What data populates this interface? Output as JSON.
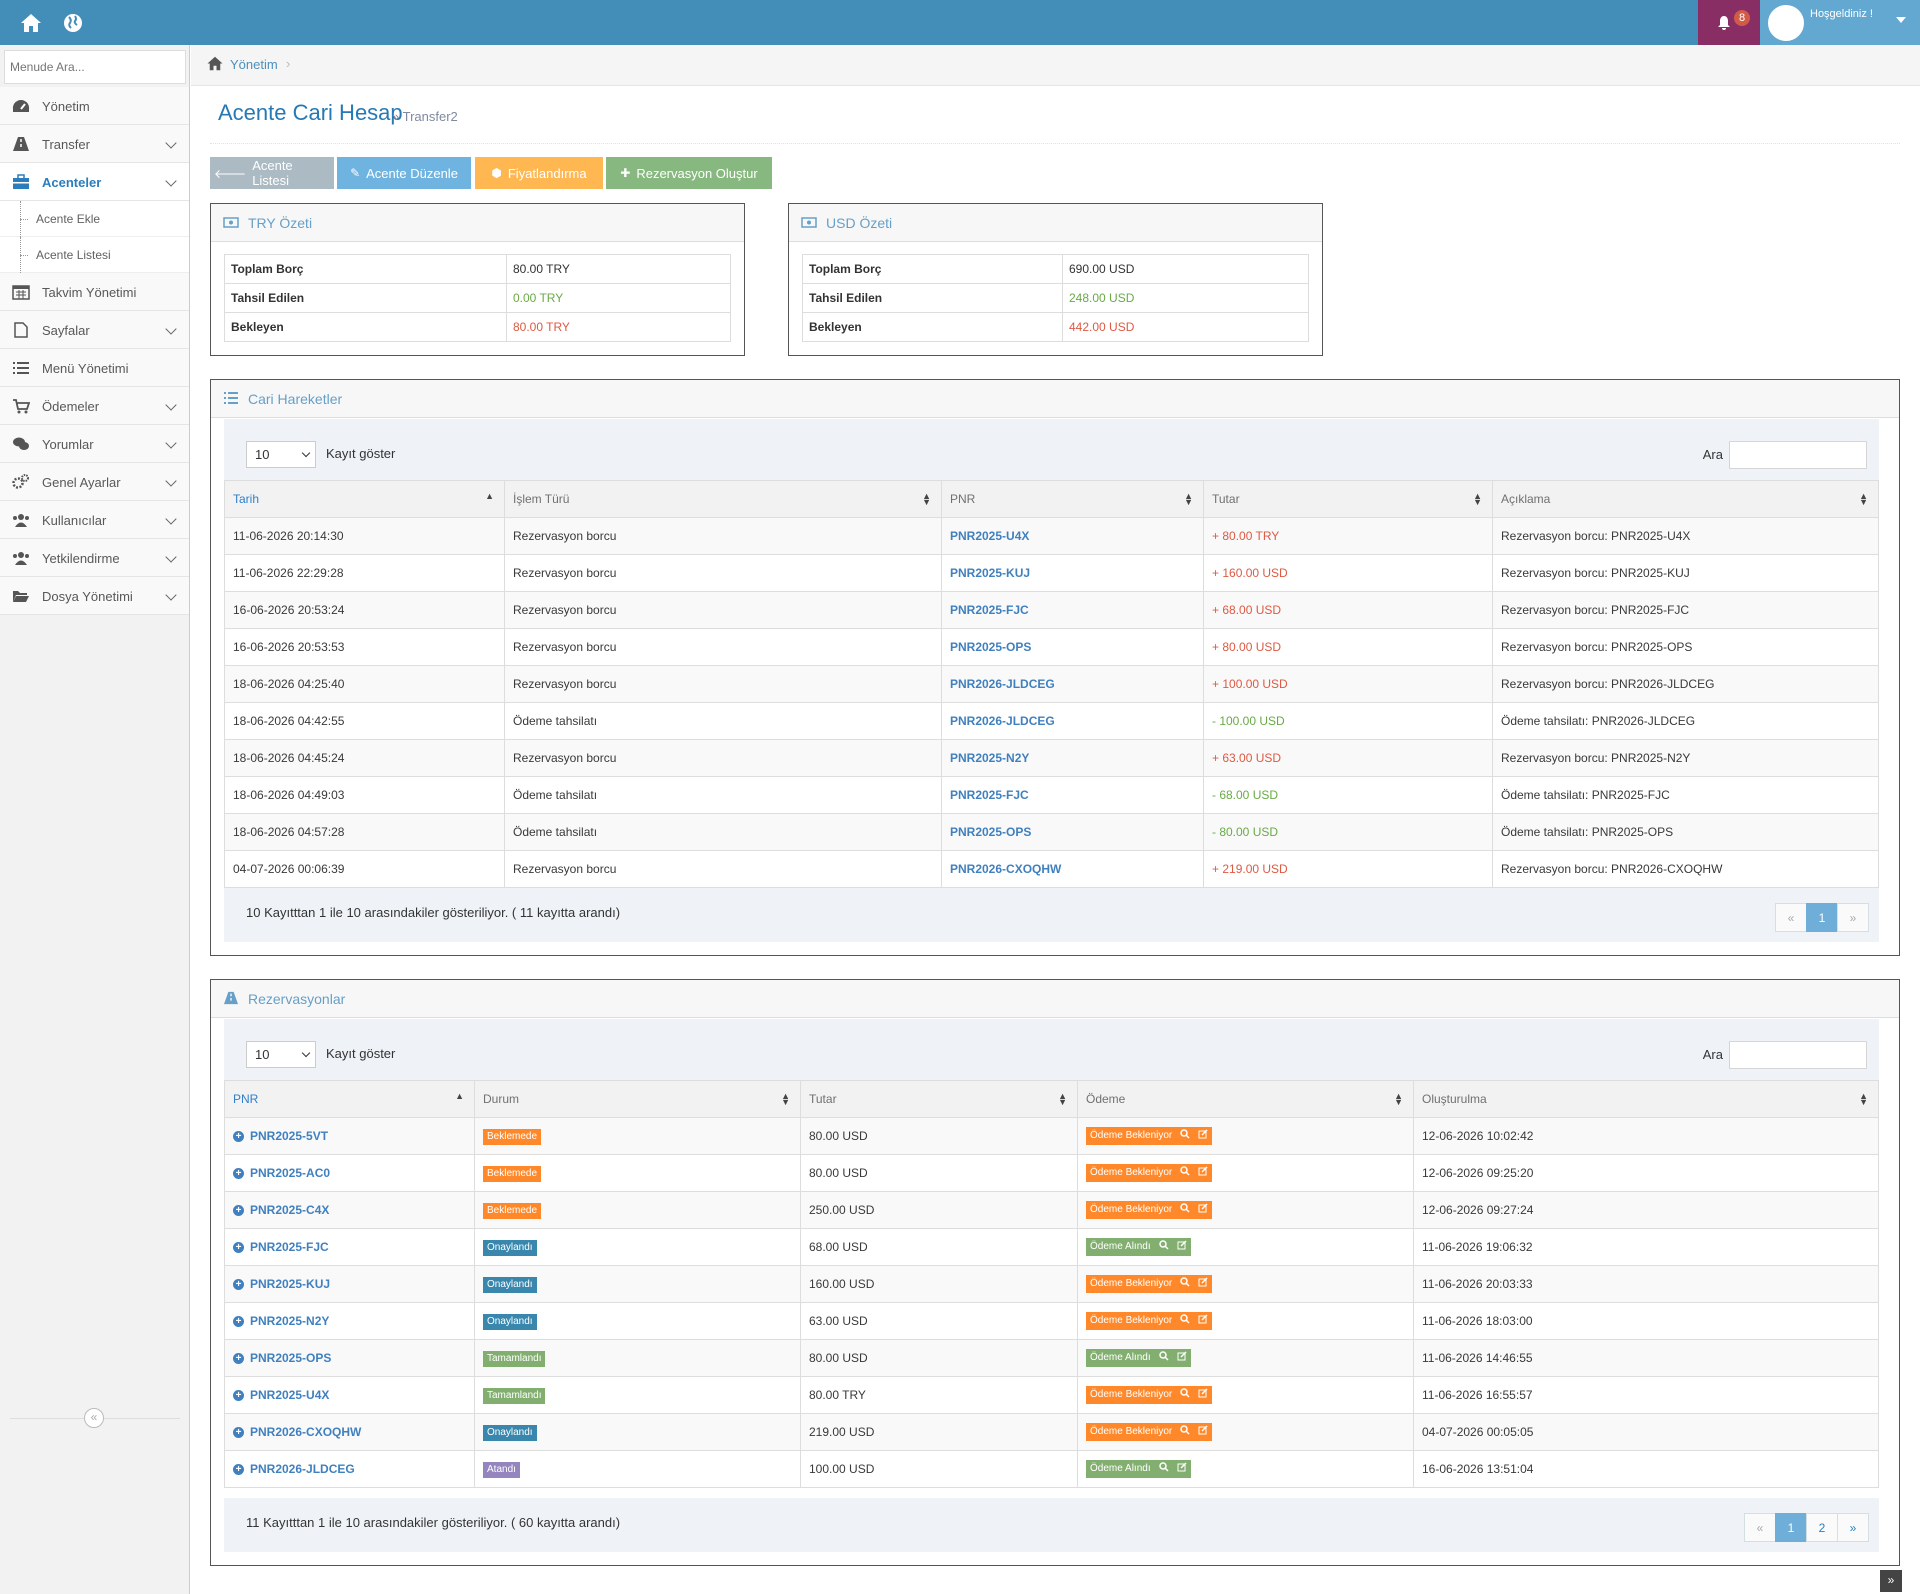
{
  "navbar": {
    "welcome": "Hoşgeldiniz !",
    "notif_count": "8"
  },
  "sidebar": {
    "search_placeholder": "Menude Ara...",
    "items": [
      {
        "label": "Yönetim"
      },
      {
        "label": "Transfer"
      },
      {
        "label": "Acenteler"
      },
      {
        "label": "Acente Ekle"
      },
      {
        "label": "Acente Listesi"
      },
      {
        "label": "Takvim Yönetimi"
      },
      {
        "label": "Sayfalar"
      },
      {
        "label": "Menü Yönetimi"
      },
      {
        "label": "Ödemeler"
      },
      {
        "label": "Yorumlar"
      },
      {
        "label": "Genel Ayarlar"
      },
      {
        "label": "Kullanıcılar"
      },
      {
        "label": "Yetkilendirme"
      },
      {
        "label": "Dosya Yönetimi"
      }
    ]
  },
  "breadcrumb": {
    "home": "Yönetim"
  },
  "page": {
    "title": "Acente Cari Hesap",
    "subtitle": "» Transfer2"
  },
  "buttons": {
    "list": "Acente Listesi",
    "edit": "Acente Düzenle",
    "pricing": "Fiyatlandırma",
    "create": "Rezervasyon Oluştur"
  },
  "try_summary": {
    "title": "TRY Özeti",
    "rows": [
      {
        "k": "Toplam Borç",
        "v": "80.00 TRY"
      },
      {
        "k": "Tahsil Edilen",
        "v": "0.00 TRY"
      },
      {
        "k": "Bekleyen",
        "v": "80.00 TRY"
      }
    ]
  },
  "usd_summary": {
    "title": "USD Özeti",
    "rows": [
      {
        "k": "Toplam Borç",
        "v": "690.00 USD"
      },
      {
        "k": "Tahsil Edilen",
        "v": "248.00 USD"
      },
      {
        "k": "Bekleyen",
        "v": "442.00 USD"
      }
    ]
  },
  "colors": {
    "accent": "#438eb9",
    "green": "#69aa46",
    "red": "#dd5a43",
    "orange": "#ff892a",
    "blue": "#3a87ad",
    "purple": "#9585bf"
  },
  "movements": {
    "title": "Cari Hareketler",
    "length_value": "10",
    "length_label": "Kayıt göster",
    "search_label": "Ara",
    "headers": [
      "Tarih",
      "İşlem Türü",
      "PNR",
      "Tutar",
      "Açıklama"
    ],
    "rows": [
      [
        "11-06-2026 20:14:30",
        "Rezervasyon borcu",
        "PNR2025-U4X",
        "+ 80.00 TRY",
        "Rezervasyon borcu: PNR2025-U4X"
      ],
      [
        "11-06-2026 22:29:28",
        "Rezervasyon borcu",
        "PNR2025-KUJ",
        "+ 160.00 USD",
        "Rezervasyon borcu: PNR2025-KUJ"
      ],
      [
        "16-06-2026 20:53:24",
        "Rezervasyon borcu",
        "PNR2025-FJC",
        "+ 68.00 USD",
        "Rezervasyon borcu: PNR2025-FJC"
      ],
      [
        "16-06-2026 20:53:53",
        "Rezervasyon borcu",
        "PNR2025-OPS",
        "+ 80.00 USD",
        "Rezervasyon borcu: PNR2025-OPS"
      ],
      [
        "18-06-2026 04:25:40",
        "Rezervasyon borcu",
        "PNR2026-JLDCEG",
        "+ 100.00 USD",
        "Rezervasyon borcu: PNR2026-JLDCEG"
      ],
      [
        "18-06-2026 04:42:55",
        "Ödeme tahsilatı",
        "PNR2026-JLDCEG",
        "- 100.00 USD",
        "Ödeme tahsilatı: PNR2026-JLDCEG"
      ],
      [
        "18-06-2026 04:45:24",
        "Rezervasyon borcu",
        "PNR2025-N2Y",
        "+ 63.00 USD",
        "Rezervasyon borcu: PNR2025-N2Y"
      ],
      [
        "18-06-2026 04:49:03",
        "Ödeme tahsilatı",
        "PNR2025-FJC",
        "- 68.00 USD",
        "Ödeme tahsilatı: PNR2025-FJC"
      ],
      [
        "18-06-2026 04:57:28",
        "Ödeme tahsilatı",
        "PNR2025-OPS",
        "- 80.00 USD",
        "Ödeme tahsilatı: PNR2025-OPS"
      ],
      [
        "04-07-2026 00:06:39",
        "Rezervasyon borcu",
        "PNR2026-CXOQHW",
        "+ 219.00 USD",
        "Rezervasyon borcu: PNR2026-CXOQHW"
      ]
    ],
    "info": "10 Kayıtttan 1 ile 10 arasındakiler gösteriliyor. ( 11 kayıtta arandı)",
    "pages": [
      "«",
      "1",
      "»"
    ]
  },
  "reservations": {
    "title": "Rezervasyonlar",
    "length_value": "10",
    "length_label": "Kayıt göster",
    "search_label": "Ara",
    "headers": [
      "PNR",
      "Durum",
      "Tutar",
      "Ödeme",
      "Oluşturulma"
    ],
    "rows": [
      {
        "pnr": "PNR2025-5VT",
        "status": "Beklemede",
        "status_color": "#ff892a",
        "amount": "80.00 USD",
        "payment": "Ödeme Bekleniyor",
        "payment_color": "#ff892a",
        "created": "12-06-2026 10:02:42"
      },
      {
        "pnr": "PNR2025-AC0",
        "status": "Beklemede",
        "status_color": "#ff892a",
        "amount": "80.00 USD",
        "payment": "Ödeme Bekleniyor",
        "payment_color": "#ff892a",
        "created": "12-06-2026 09:25:20"
      },
      {
        "pnr": "PNR2025-C4X",
        "status": "Beklemede",
        "status_color": "#ff892a",
        "amount": "250.00 USD",
        "payment": "Ödeme Bekleniyor",
        "payment_color": "#ff892a",
        "created": "12-06-2026 09:27:24"
      },
      {
        "pnr": "PNR2025-FJC",
        "status": "Onaylandı",
        "status_color": "#3a87ad",
        "amount": "68.00 USD",
        "payment": "Ödeme Alındı",
        "payment_color": "#82af6f",
        "created": "11-06-2026 19:06:32"
      },
      {
        "pnr": "PNR2025-KUJ",
        "status": "Onaylandı",
        "status_color": "#3a87ad",
        "amount": "160.00 USD",
        "payment": "Ödeme Bekleniyor",
        "payment_color": "#ff892a",
        "created": "11-06-2026 20:03:33"
      },
      {
        "pnr": "PNR2025-N2Y",
        "status": "Onaylandı",
        "status_color": "#3a87ad",
        "amount": "63.00 USD",
        "payment": "Ödeme Bekleniyor",
        "payment_color": "#ff892a",
        "created": "11-06-2026 18:03:00"
      },
      {
        "pnr": "PNR2025-OPS",
        "status": "Tamamlandı",
        "status_color": "#82af6f",
        "amount": "80.00 USD",
        "payment": "Ödeme Alındı",
        "payment_color": "#82af6f",
        "created": "11-06-2026 14:46:55"
      },
      {
        "pnr": "PNR2025-U4X",
        "status": "Tamamlandı",
        "status_color": "#82af6f",
        "amount": "80.00 TRY",
        "payment": "Ödeme Bekleniyor",
        "payment_color": "#ff892a",
        "created": "11-06-2026 16:55:57"
      },
      {
        "pnr": "PNR2026-CXOQHW",
        "status": "Onaylandı",
        "status_color": "#3a87ad",
        "amount": "219.00 USD",
        "payment": "Ödeme Bekleniyor",
        "payment_color": "#ff892a",
        "created": "04-07-2026 00:05:05"
      },
      {
        "pnr": "PNR2026-JLDCEG",
        "status": "Atandı",
        "status_color": "#9585bf",
        "amount": "100.00 USD",
        "payment": "Ödeme Alındı",
        "payment_color": "#82af6f",
        "created": "16-06-2026 13:51:04"
      }
    ],
    "info": "11 Kayıtttan 1 ile 10 arasındakiler gösteriliyor. ( 60 kayıtta arandı)",
    "pages": [
      "«",
      "1",
      "2",
      "»"
    ]
  }
}
